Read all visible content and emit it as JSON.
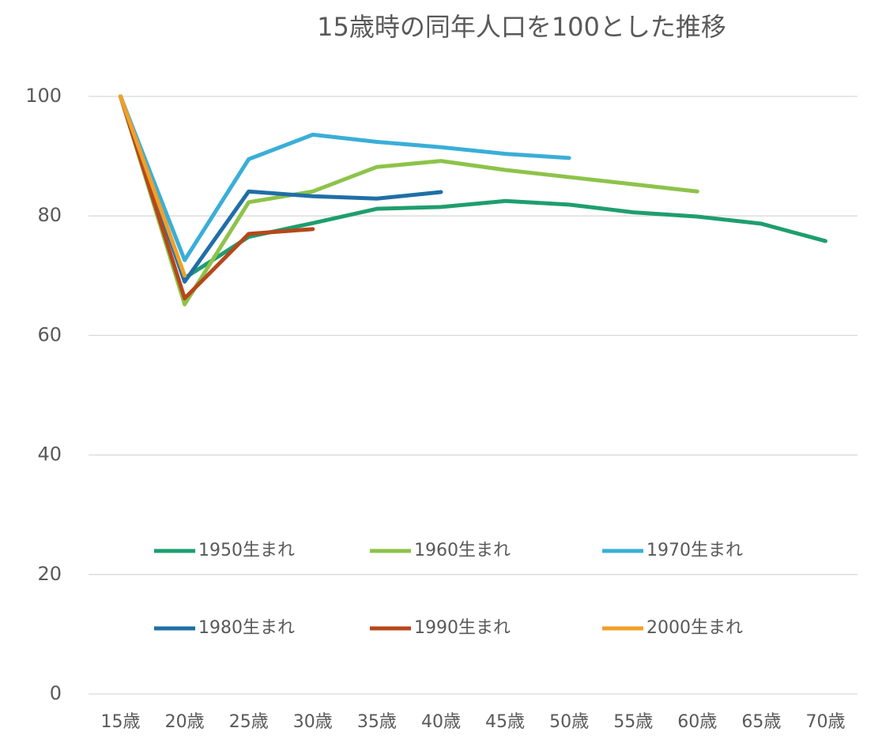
{
  "chart_data": {
    "type": "line",
    "title": "15歳時の同年人口を100とした推移",
    "categories": [
      "15歳",
      "20歳",
      "25歳",
      "30歳",
      "35歳",
      "40歳",
      "45歳",
      "50歳",
      "55歳",
      "60歳",
      "65歳",
      "70歳"
    ],
    "series": [
      {
        "name": "1950生まれ",
        "color": "#1e9e6e",
        "values": [
          100,
          69.6,
          76.5,
          78.8,
          81.2,
          81.5,
          82.5,
          81.9,
          80.6,
          79.9,
          78.7,
          75.8
        ]
      },
      {
        "name": "1960生まれ",
        "color": "#8dc34a",
        "values": [
          100,
          65.2,
          82.3,
          84.1,
          88.2,
          89.2,
          87.7,
          86.5,
          85.3,
          84.1,
          null,
          null
        ]
      },
      {
        "name": "1970生まれ",
        "color": "#3aaed8",
        "values": [
          100,
          72.6,
          89.5,
          93.6,
          92.4,
          91.5,
          90.4,
          89.7,
          null,
          null,
          null,
          null
        ]
      },
      {
        "name": "1980生まれ",
        "color": "#1f6fa6",
        "values": [
          100,
          69.0,
          84.1,
          83.3,
          82.9,
          84.0,
          null,
          null,
          null,
          null,
          null,
          null
        ]
      },
      {
        "name": "1990生まれ",
        "color": "#b5471b",
        "values": [
          100,
          66.2,
          77.0,
          77.8,
          null,
          null,
          null,
          null,
          null,
          null,
          null,
          null
        ]
      },
      {
        "name": "2000生まれ",
        "color": "#f0a02a",
        "values": [
          100,
          70.0,
          null,
          null,
          null,
          null,
          null,
          null,
          null,
          null,
          null,
          null
        ]
      }
    ],
    "ylim": [
      0,
      100
    ],
    "yticks": [
      0,
      20,
      40,
      60,
      80,
      100
    ],
    "grid": true
  }
}
